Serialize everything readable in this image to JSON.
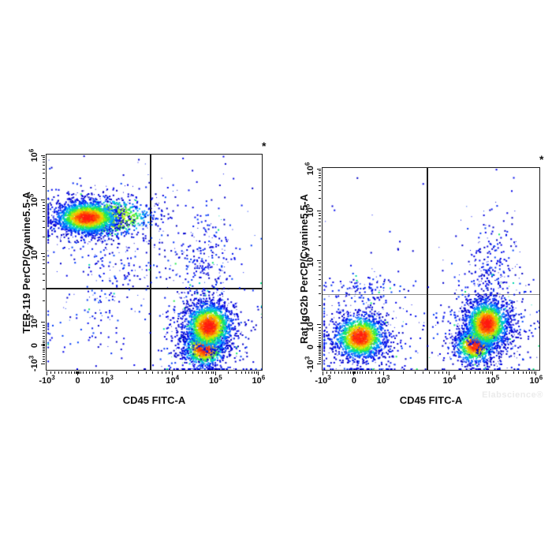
{
  "watermark": {
    "text": "Elabscience®",
    "color": "#ebebeb"
  },
  "colors": {
    "plot_border": "#1b1b1b",
    "tick": "#111111",
    "text": "#111111",
    "quad_line_dark": "#1b1b1b",
    "quad_line_gray": "#8a8a8a",
    "density_scale": [
      "#0000b4",
      "#0000eb",
      "#005aff",
      "#00beff",
      "#00e182",
      "#5af01e",
      "#dceb00",
      "#ffaa00",
      "#ff5a00",
      "#ff1910"
    ]
  },
  "chart_data": [
    {
      "id": "left-plot",
      "type": "scatter",
      "subtype": "flow-cytometry-pseudocolor-density",
      "xlabel": "CD45 FITC-A",
      "ylabel": "TER-119 PerCP/Cyanine5.5-A",
      "annotation": "*",
      "x_scale_type": "biexponential",
      "y_scale_type": "biexponential",
      "x_ticks": [
        {
          "v": -1000,
          "label": "-10^3"
        },
        {
          "v": 0,
          "label": "0"
        },
        {
          "v": 1000,
          "label": "10^3"
        },
        {
          "v": 10000,
          "label": "10^4"
        },
        {
          "v": 100000,
          "label": "10^5"
        },
        {
          "v": 1000000,
          "label": "10^6"
        }
      ],
      "y_ticks": [
        {
          "v": -1000,
          "label": "-10^3"
        },
        {
          "v": 0,
          "label": "0"
        },
        {
          "v": 1000,
          "label": "10^3"
        },
        {
          "v": 10000,
          "label": "10^4"
        },
        {
          "v": 100000,
          "label": "10^5"
        },
        {
          "v": 1000000,
          "label": "10^6"
        }
      ],
      "x_scale": [
        [
          -1000,
          0.002
        ],
        [
          0,
          0.145
        ],
        [
          1000,
          0.28
        ],
        [
          10000,
          0.585
        ],
        [
          100000,
          0.785
        ],
        [
          1000000,
          0.985
        ]
      ],
      "y_scale": [
        [
          -1000,
          0.971
        ],
        [
          0,
          0.886
        ],
        [
          1000,
          0.777
        ],
        [
          10000,
          0.458
        ],
        [
          100000,
          0.212
        ],
        [
          1000000,
          0.004
        ]
      ],
      "quadrant": {
        "x_frac": 0.483,
        "y_frac": 0.623,
        "v_color": "#1b1b1b",
        "h_color": "#1b1b1b",
        "gate_values_approx": {
          "x": 5000,
          "y": 3000
        }
      },
      "populations": [
        {
          "desc": "TER-119+ CD45- erythroid core",
          "style": "density",
          "fx": 0.185,
          "fy": 0.29,
          "sx": 0.075,
          "sy": 0.038,
          "count": 1900,
          "tmax": 1,
          "approx_center": [
            300,
            48000
          ]
        },
        {
          "desc": "TER-119+ right tail",
          "style": "density",
          "fx": 0.27,
          "fy": 0.29,
          "sx": 0.115,
          "sy": 0.046,
          "count": 900,
          "tmax": 0.55,
          "approx_center": [
            950,
            48000
          ]
        },
        {
          "desc": "TER-119+ halo",
          "style": "sparse",
          "fx": 0.21,
          "fy": 0.3,
          "sx": 0.16,
          "sy": 0.085,
          "count": 380,
          "approx_center": [
            400,
            45000
          ]
        },
        {
          "desc": "mid-left scatter",
          "style": "sparse",
          "fx": 0.33,
          "fy": 0.57,
          "sx": 0.1,
          "sy": 0.07,
          "count": 110,
          "approx_center": [
            1400,
            4300
          ]
        },
        {
          "desc": "upper-right scatter column",
          "style": "sparse",
          "fx": 0.74,
          "fy": 0.5,
          "sx": 0.07,
          "sy": 0.1,
          "count": 200,
          "approx_center": [
            60000,
            7300
          ]
        },
        {
          "desc": "upper-right stragglers",
          "style": "sparse",
          "fx": 0.68,
          "fy": 0.33,
          "sx": 0.12,
          "sy": 0.12,
          "count": 70,
          "approx_center": [
            32000,
            36000
          ]
        },
        {
          "desc": "CD45+ TER-119- halo",
          "style": "sparse",
          "fx": 0.74,
          "fy": 0.82,
          "sx": 0.1,
          "sy": 0.115,
          "count": 650,
          "approx_center": [
            60000,
            550
          ]
        },
        {
          "desc": "CD45+ TER-119- core",
          "style": "density",
          "fx": 0.75,
          "fy": 0.795,
          "sx": 0.055,
          "sy": 0.055,
          "count": 1700,
          "tmax": 1,
          "approx_center": [
            67000,
            900
          ]
        },
        {
          "desc": "CD45+ lower lobe",
          "style": "density",
          "fx": 0.73,
          "fy": 0.9,
          "sx": 0.05,
          "sy": 0.042,
          "count": 900,
          "tmax": 0.9,
          "approx_center": [
            54000,
            0
          ]
        },
        {
          "desc": "bottom-left scatter",
          "style": "sparse",
          "fx": 0.18,
          "fy": 0.8,
          "sx": 0.13,
          "sy": 0.08,
          "count": 80,
          "approx_center": [
            250,
            500
          ]
        },
        {
          "desc": "background noise",
          "style": "uniform",
          "count": 60
        }
      ]
    },
    {
      "id": "right-plot",
      "type": "scatter",
      "subtype": "flow-cytometry-pseudocolor-density",
      "xlabel": "CD45 FITC-A",
      "ylabel": "Rat IgG2b PerCP/Cyanine5.5-A",
      "annotation": "*",
      "x_scale_type": "biexponential",
      "y_scale_type": "biexponential",
      "x_ticks": [
        {
          "v": -1000,
          "label": "-10^3"
        },
        {
          "v": 0,
          "label": "0"
        },
        {
          "v": 1000,
          "label": "10^3"
        },
        {
          "v": 10000,
          "label": "10^4"
        },
        {
          "v": 100000,
          "label": "10^5"
        },
        {
          "v": 1000000,
          "label": "10^6"
        }
      ],
      "y_ticks": [
        {
          "v": -1000,
          "label": "-10^3"
        },
        {
          "v": 0,
          "label": "0"
        },
        {
          "v": 1000,
          "label": "10^3"
        },
        {
          "v": 10000,
          "label": "10^4"
        },
        {
          "v": 100000,
          "label": "10^5"
        },
        {
          "v": 1000000,
          "label": "10^6"
        }
      ],
      "x_scale": [
        [
          -1000,
          0.002
        ],
        [
          0,
          0.145
        ],
        [
          1000,
          0.28
        ],
        [
          10000,
          0.585
        ],
        [
          100000,
          0.785
        ],
        [
          1000000,
          0.985
        ]
      ],
      "y_scale": [
        [
          -1000,
          0.971
        ],
        [
          0,
          0.886
        ],
        [
          1000,
          0.777
        ],
        [
          10000,
          0.458
        ],
        [
          100000,
          0.212
        ],
        [
          1000000,
          0.004
        ]
      ],
      "quadrant": {
        "x_frac": 0.483,
        "y_frac": 0.628,
        "v_color": "#1b1b1b",
        "h_color": "#8a8a8a",
        "gate_values_approx": {
          "x": 5000,
          "y": 3000
        }
      },
      "populations": [
        {
          "desc": "CD45- halo",
          "style": "sparse",
          "fx": 0.175,
          "fy": 0.83,
          "sx": 0.13,
          "sy": 0.12,
          "count": 450,
          "approx_center": [
            260,
            420
          ]
        },
        {
          "desc": "CD45- core (isotype)",
          "style": "density",
          "fx": 0.17,
          "fy": 0.835,
          "sx": 0.058,
          "sy": 0.055,
          "count": 1500,
          "tmax": 0.95,
          "approx_center": [
            250,
            400
          ]
        },
        {
          "desc": "CD45+ halo",
          "style": "sparse",
          "fx": 0.745,
          "fy": 0.8,
          "sx": 0.105,
          "sy": 0.115,
          "count": 650,
          "approx_center": [
            63000,
            700
          ]
        },
        {
          "desc": "CD45+ upper core",
          "style": "density",
          "fx": 0.755,
          "fy": 0.77,
          "sx": 0.05,
          "sy": 0.06,
          "count": 1600,
          "tmax": 1,
          "approx_center": [
            70000,
            1100
          ]
        },
        {
          "desc": "CD45+ lower lobe",
          "style": "density",
          "fx": 0.7,
          "fy": 0.875,
          "sx": 0.046,
          "sy": 0.045,
          "count": 850,
          "tmax": 0.92,
          "approx_center": [
            38000,
            100
          ]
        },
        {
          "desc": "upper-right scatter above gate",
          "style": "sparse",
          "fx": 0.77,
          "fy": 0.53,
          "sx": 0.065,
          "sy": 0.09,
          "count": 170,
          "approx_center": [
            73000,
            5900
          ]
        },
        {
          "desc": "upper-right high stragglers",
          "style": "sparse",
          "fx": 0.78,
          "fy": 0.35,
          "sx": 0.06,
          "sy": 0.1,
          "count": 55,
          "approx_center": [
            78000,
            28000
          ]
        },
        {
          "desc": "upper-left scatter above gate",
          "style": "sparse",
          "fx": 0.19,
          "fy": 0.585,
          "sx": 0.11,
          "sy": 0.035,
          "count": 75,
          "approx_center": [
            300,
            3800
          ]
        },
        {
          "desc": "background noise",
          "style": "uniform",
          "count": 55
        }
      ]
    }
  ]
}
